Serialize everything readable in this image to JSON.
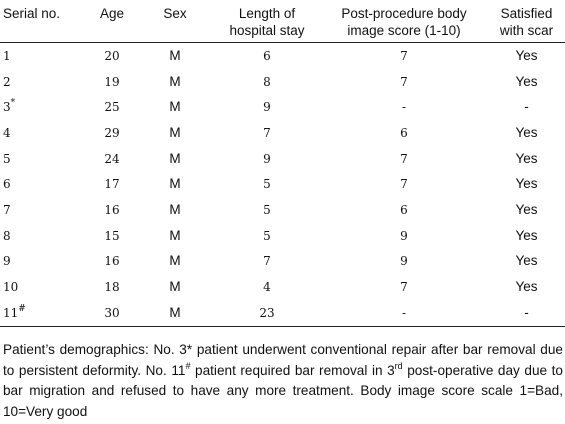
{
  "table": {
    "headers": [
      "Serial no.",
      "Age",
      "Sex",
      "Length of hospital stay",
      "Post-procedure body image score (1-10)",
      "Satisfied with scar"
    ],
    "rows": [
      {
        "serial": "1",
        "serial_mark": "",
        "age": "20",
        "sex": "M",
        "stay": "6",
        "score": "7",
        "satisfied": "Yes"
      },
      {
        "serial": "2",
        "serial_mark": "",
        "age": "19",
        "sex": "M",
        "stay": "8",
        "score": "7",
        "satisfied": "Yes"
      },
      {
        "serial": "3",
        "serial_mark": "*",
        "age": "25",
        "sex": "M",
        "stay": "9",
        "score": "-",
        "satisfied": "-"
      },
      {
        "serial": "4",
        "serial_mark": "",
        "age": "29",
        "sex": "M",
        "stay": "7",
        "score": "6",
        "satisfied": "Yes"
      },
      {
        "serial": "5",
        "serial_mark": "",
        "age": "24",
        "sex": "M",
        "stay": "9",
        "score": "7",
        "satisfied": "Yes"
      },
      {
        "serial": "6",
        "serial_mark": "",
        "age": "17",
        "sex": "M",
        "stay": "5",
        "score": "7",
        "satisfied": "Yes"
      },
      {
        "serial": "7",
        "serial_mark": "",
        "age": "16",
        "sex": "M",
        "stay": "5",
        "score": "6",
        "satisfied": "Yes"
      },
      {
        "serial": "8",
        "serial_mark": "",
        "age": "15",
        "sex": "M",
        "stay": "5",
        "score": "9",
        "satisfied": "Yes"
      },
      {
        "serial": "9",
        "serial_mark": "",
        "age": "16",
        "sex": "M",
        "stay": "7",
        "score": "9",
        "satisfied": "Yes"
      },
      {
        "serial": "10",
        "serial_mark": "",
        "age": "18",
        "sex": "M",
        "stay": "4",
        "score": "7",
        "satisfied": "Yes"
      },
      {
        "serial": "11",
        "serial_mark": "#",
        "age": "30",
        "sex": "M",
        "stay": "23",
        "score": "-",
        "satisfied": "-"
      }
    ]
  },
  "caption": {
    "part1": "Patient’s demographics: No. 3* patient underwent conventional repair after bar removal due to persistent deformity. No. 11",
    "mark": "#",
    "part2": " patient required bar removal in 3",
    "ordinal": "rd",
    "part3": " post-operative day due to bar migration and refused to have any more treatment. Body image score scale 1=Bad, 10=Very good"
  }
}
